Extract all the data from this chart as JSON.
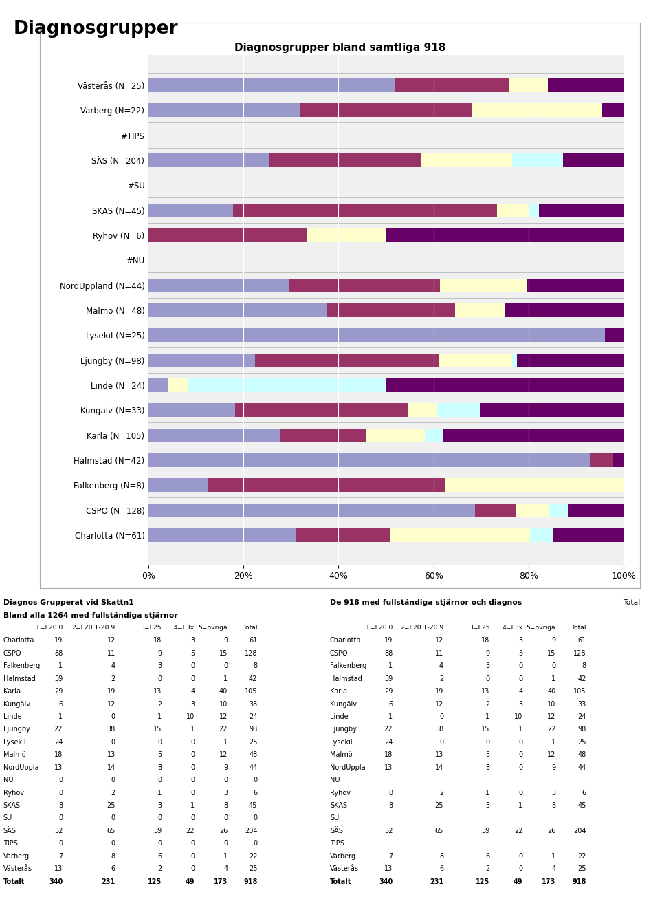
{
  "title_main": "Diagnosgrupper",
  "chart_title": "Diagnosgrupper bland samtliga 918",
  "legend_labels": [
    "1=F20.0",
    "2=F20.1-20.9",
    "3=F25",
    "4=F3x",
    "5=övriga"
  ],
  "colors": [
    "#9999cc",
    "#993366",
    "#ffffcc",
    "#ccffff",
    "#660066"
  ],
  "bar_bg_color": "#cccccc",
  "categories": [
    "Västerås (N=25)",
    "Varberg (N=22)",
    "#TIPS",
    "SÄS (N=204)",
    "#SU",
    "SKAS (N=45)",
    "Ryhov (N=6)",
    "#NU",
    "NordUppland (N=44)",
    "Malmö (N=48)",
    "Lysekil (N=25)",
    "Ljungby (N=98)",
    "Linde (N=24)",
    "Kungälv (N=33)",
    "Karla (N=105)",
    "Halmstad (N=42)",
    "Falkenberg (N=8)",
    "CSPO (N=128)",
    "Charlotta (N=61)"
  ],
  "data": {
    "Västerås (N=25)": [
      13,
      6,
      2,
      0,
      4
    ],
    "Varberg (N=22)": [
      7,
      8,
      6,
      0,
      1
    ],
    "#TIPS": [
      0,
      0,
      0,
      0,
      0
    ],
    "SÄS (N=204)": [
      52,
      65,
      39,
      22,
      26
    ],
    "#SU": [
      0,
      0,
      0,
      0,
      0
    ],
    "SKAS (N=45)": [
      8,
      25,
      3,
      1,
      8
    ],
    "Ryhov (N=6)": [
      0,
      2,
      1,
      0,
      3
    ],
    "#NU": [
      0,
      0,
      0,
      0,
      0
    ],
    "NordUppland (N=44)": [
      13,
      14,
      8,
      0,
      9
    ],
    "Malmö (N=48)": [
      18,
      13,
      5,
      0,
      12
    ],
    "Lysekil (N=25)": [
      24,
      0,
      0,
      0,
      1
    ],
    "Ljungby (N=98)": [
      22,
      38,
      15,
      1,
      22
    ],
    "Linde (N=24)": [
      1,
      0,
      1,
      10,
      12
    ],
    "Kungälv (N=33)": [
      6,
      12,
      2,
      3,
      10
    ],
    "Karla (N=105)": [
      29,
      19,
      13,
      4,
      40
    ],
    "Halmstad (N=42)": [
      39,
      2,
      0,
      0,
      1
    ],
    "Falkenberg (N=8)": [
      1,
      4,
      3,
      0,
      0
    ],
    "CSPO (N=128)": [
      88,
      11,
      9,
      5,
      15
    ],
    "Charlotta (N=61)": [
      19,
      12,
      18,
      3,
      9
    ]
  },
  "table_left_header1": "Diagnos Grupperat vid Skattn1",
  "table_left_header2": "Bland alla 1264 med fullständiga stjärnor",
  "table_right_header": "De 918 med fullständiga stjärnor och diagnos",
  "table_col_headers": [
    "1=F20.0",
    "2=F20.1-20.9",
    "3=F25",
    "4=F3x",
    "5=övriga",
    "Total"
  ],
  "table_rows": [
    [
      "Charlotta",
      19,
      12,
      18,
      3,
      9,
      61
    ],
    [
      "CSPO",
      88,
      11,
      9,
      5,
      15,
      128
    ],
    [
      "Falkenberg",
      1,
      4,
      3,
      0,
      0,
      8
    ],
    [
      "Halmstad",
      39,
      2,
      0,
      0,
      1,
      42
    ],
    [
      "Karla",
      29,
      19,
      13,
      4,
      40,
      105
    ],
    [
      "Kungälv",
      6,
      12,
      2,
      3,
      10,
      33
    ],
    [
      "Linde",
      1,
      0,
      1,
      10,
      12,
      24
    ],
    [
      "Ljungby",
      22,
      38,
      15,
      1,
      22,
      98
    ],
    [
      "Lysekil",
      24,
      0,
      0,
      0,
      1,
      25
    ],
    [
      "Malmö",
      18,
      13,
      5,
      0,
      12,
      48
    ],
    [
      "NordUppla",
      13,
      14,
      8,
      0,
      9,
      44
    ],
    [
      "NU",
      0,
      0,
      0,
      0,
      0,
      0
    ],
    [
      "Ryhov",
      0,
      2,
      1,
      0,
      3,
      6
    ],
    [
      "SKAS",
      8,
      25,
      3,
      1,
      8,
      45
    ],
    [
      "SU",
      0,
      0,
      0,
      0,
      0,
      0
    ],
    [
      "SÄS",
      52,
      65,
      39,
      22,
      26,
      204
    ],
    [
      "TIPS",
      0,
      0,
      0,
      0,
      0,
      0
    ],
    [
      "Varberg",
      7,
      8,
      6,
      0,
      1,
      22
    ],
    [
      "Västerås",
      13,
      6,
      2,
      0,
      4,
      25
    ],
    [
      "Totalt",
      340,
      231,
      125,
      49,
      173,
      918
    ]
  ],
  "no_data_rows": [
    "NU",
    "SU",
    "TIPS"
  ]
}
